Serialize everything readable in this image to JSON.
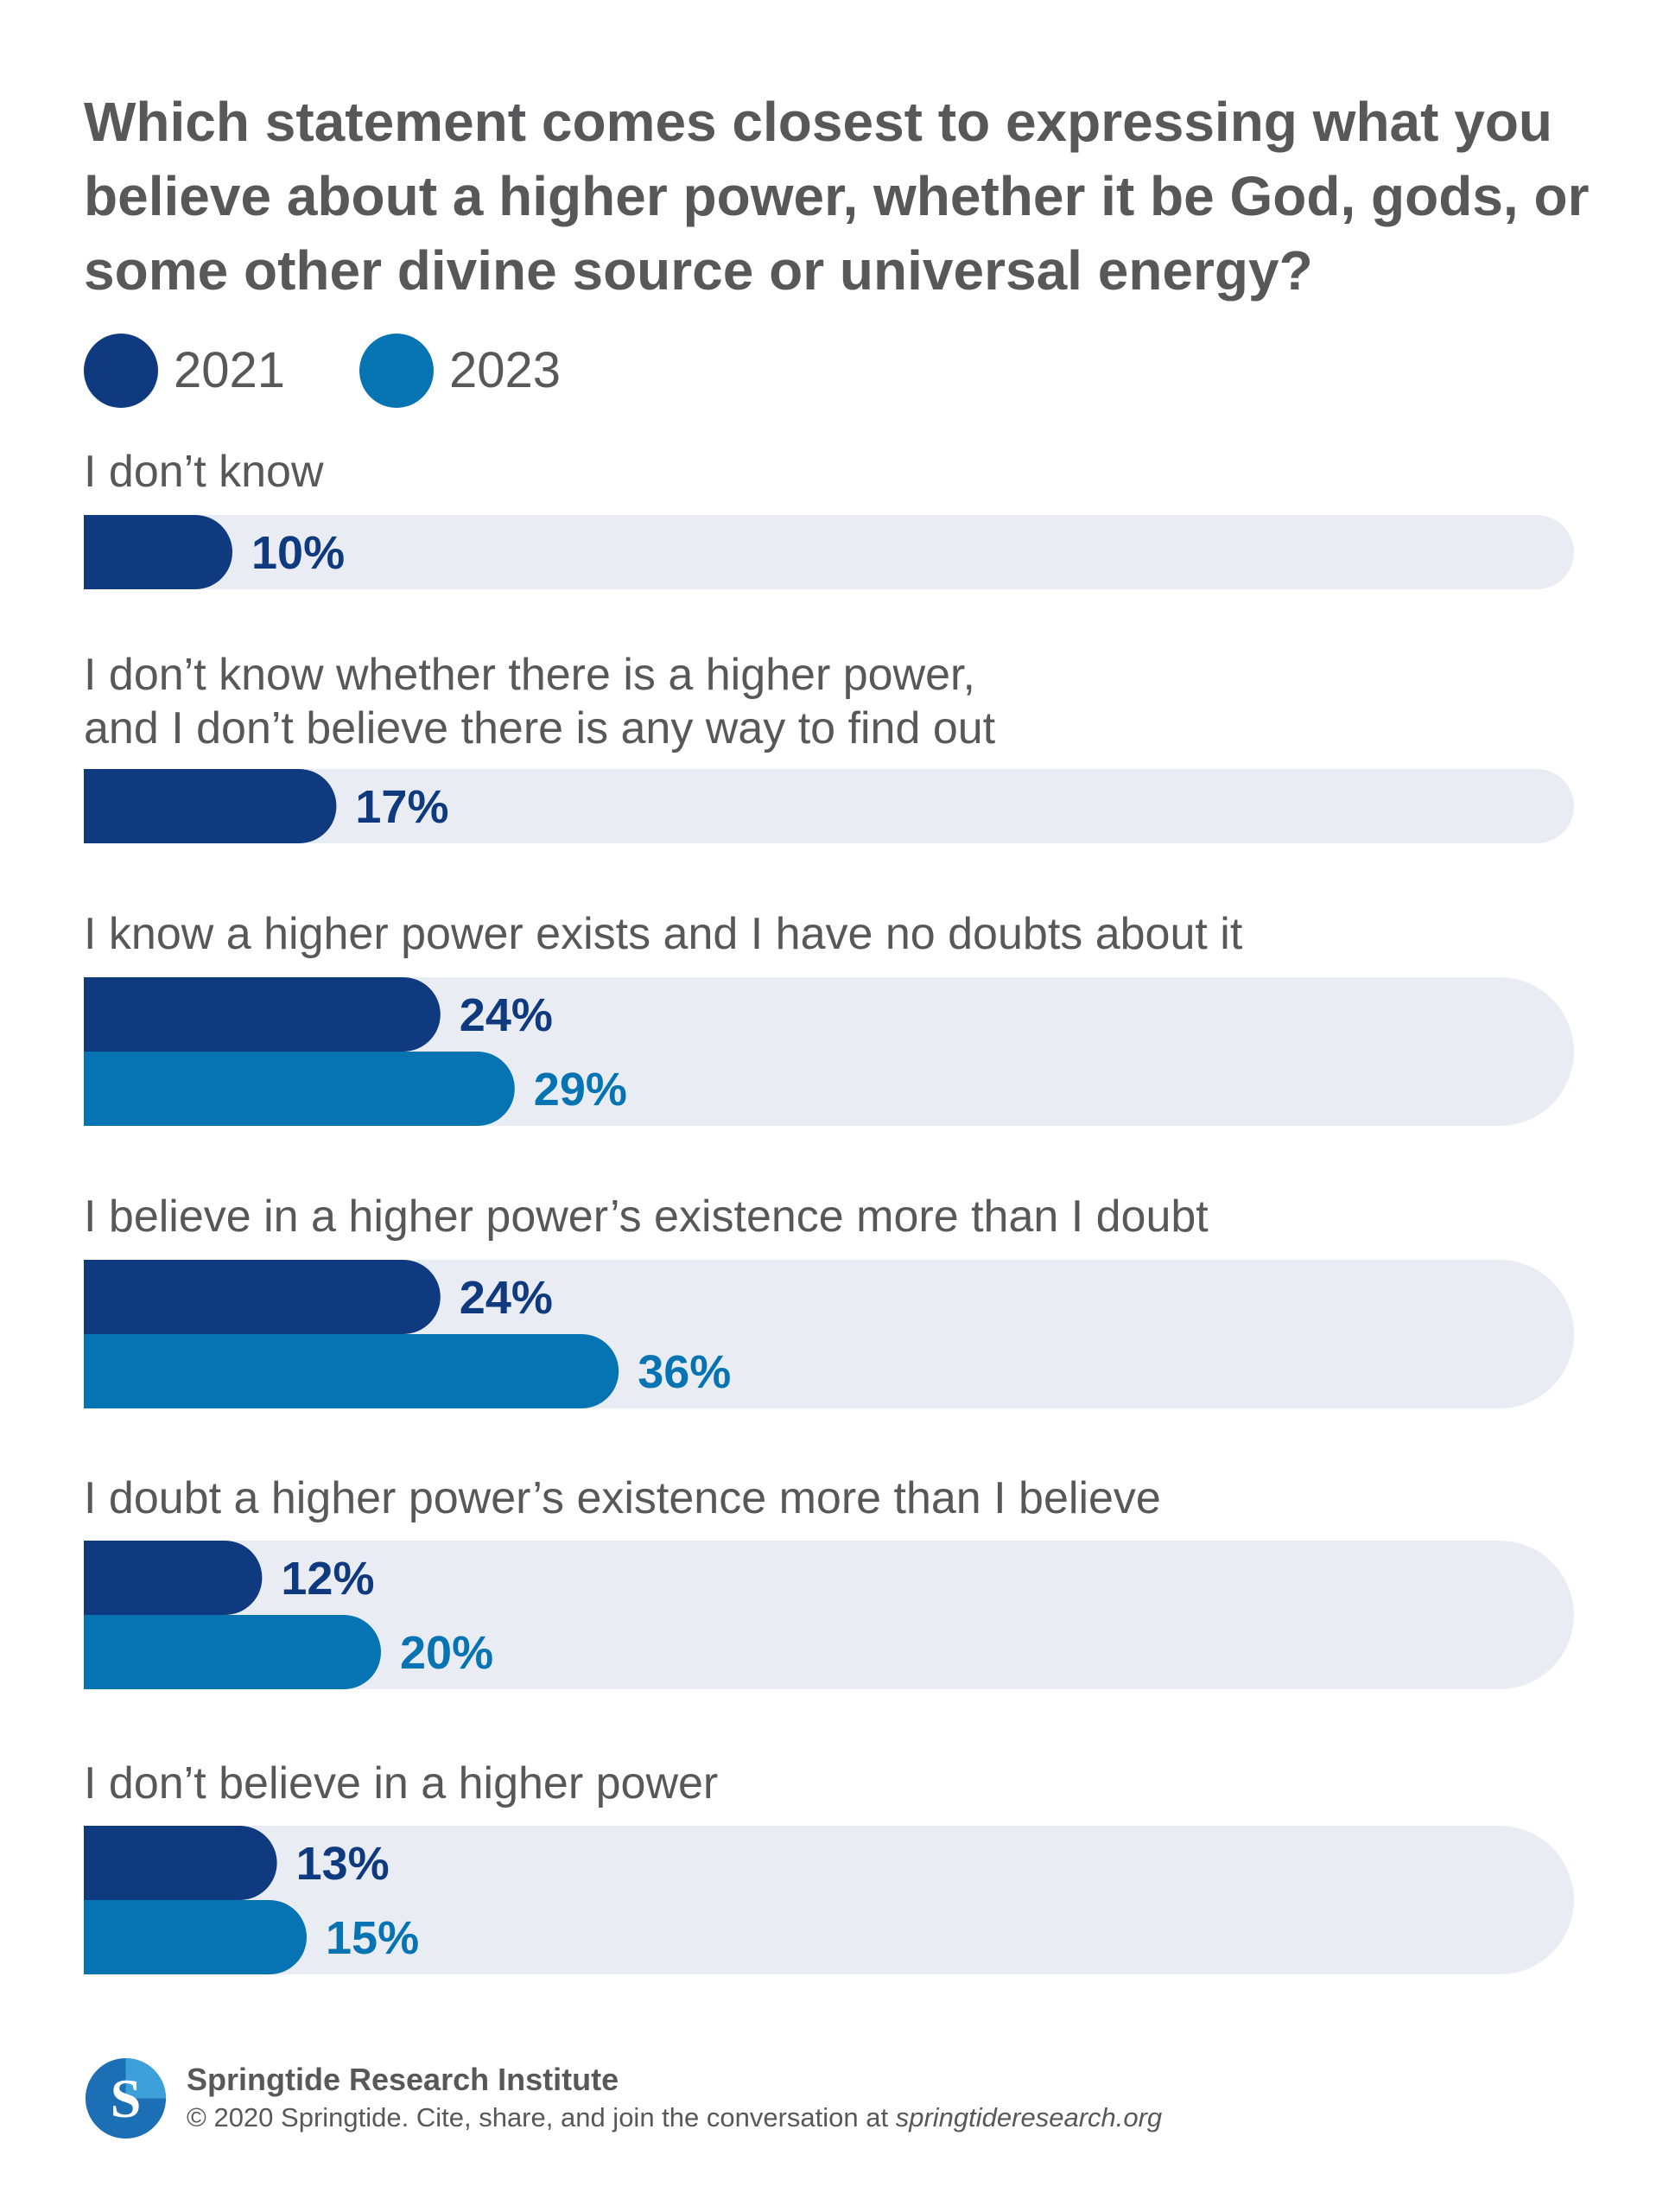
{
  "chart_data": {
    "type": "bar",
    "orientation": "horizontal",
    "title": "Which statement comes closest to expressing what you believe about a higher power, whether it be God, gods, or some other divine source or universal energy?",
    "legend": [
      {
        "name": "2021",
        "color": "#0f3a80"
      },
      {
        "name": "2023",
        "color": "#0673b3"
      }
    ],
    "legend_position": "top-left",
    "xlim": [
      0,
      100
    ],
    "grid": false,
    "categories": [
      "I don’t know",
      "I don’t know whether there is a higher power,\nand I don’t believe there is any way to find out",
      "I know a higher power exists and I have no doubts about it",
      "I believe in a higher power’s existence more than I doubt",
      "I doubt a higher power’s existence more than I believe",
      "I don’t believe in a higher power"
    ],
    "series": [
      {
        "name": "2021",
        "color": "#0f3a80",
        "values": [
          10,
          17,
          24,
          24,
          12,
          13
        ],
        "labels": [
          "10%",
          "17%",
          "24%",
          "24%",
          "12%",
          "13%"
        ]
      },
      {
        "name": "2023",
        "color": "#0673b3",
        "values": [
          null,
          null,
          29,
          36,
          20,
          15
        ],
        "labels": [
          null,
          null,
          "29%",
          "36%",
          "20%",
          "15%"
        ]
      }
    ],
    "track_color": "#e9edf3"
  },
  "footer": {
    "logo_letter": "S",
    "org_name": "Springtide Research Institute",
    "cite_text": "© 2020 Springtide. Cite, share, and join the conversation at ",
    "url_text": "springtideresearch.org"
  },
  "colors": {
    "text": "#58585a",
    "logo_blue": "#1d6fb5",
    "logo_light": "#3ea0d8"
  }
}
